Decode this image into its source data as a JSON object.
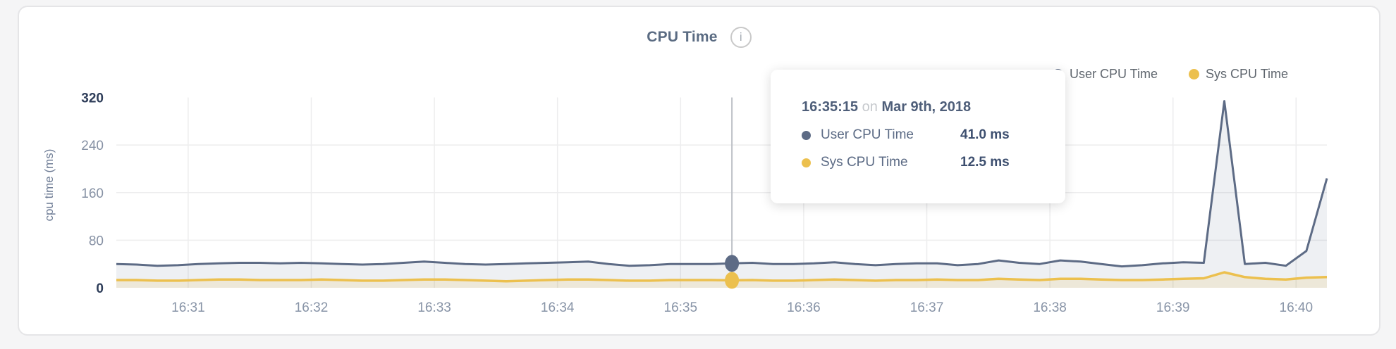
{
  "header": {
    "title": "CPU Time",
    "info_glyph": "i"
  },
  "legend": {
    "items": [
      {
        "label": "User CPU Time",
        "color": "#5d6b85"
      },
      {
        "label": "Sys CPU Time",
        "color": "#ecc04e"
      }
    ]
  },
  "tooltip": {
    "time": "16:35:15",
    "connector": "on",
    "date": "Mar 9th, 2018",
    "rows": [
      {
        "label": "User CPU Time",
        "value": "41.0 ms",
        "color": "#5d6b85"
      },
      {
        "label": "Sys CPU Time",
        "value": "12.5 ms",
        "color": "#ecc04e"
      }
    ]
  },
  "colors": {
    "grid": "#ededee",
    "hover_line": "#bdc1c7",
    "tick_dark": "#2e3d59",
    "tick_light": "#8691a4",
    "x_tick": "#8894a7",
    "user_fill": "rgba(93,107,133,0.10)",
    "sys_fill": "rgba(236,192,78,0.16)"
  },
  "chart_data": {
    "type": "area",
    "title": "CPU Time",
    "xlabel": "",
    "ylabel": "cpu time (ms)",
    "ylim": [
      0,
      320
    ],
    "yticks": [
      0,
      80,
      160,
      240,
      320
    ],
    "xticks": [
      "16:31",
      "16:32",
      "16:33",
      "16:34",
      "16:35",
      "16:36",
      "16:37",
      "16:38",
      "16:39",
      "16:40"
    ],
    "x_start": "16:30:25",
    "x_end": "16:40:15",
    "sample_interval_s": 10,
    "grid": true,
    "legend_position": "top-right",
    "series": [
      {
        "name": "User CPU Time",
        "color": "#5d6b85",
        "values": [
          40,
          39,
          37,
          38,
          40,
          41,
          42,
          42,
          41,
          42,
          41,
          40,
          39,
          40,
          42,
          44,
          42,
          40,
          39,
          40,
          41,
          42,
          43,
          44,
          40,
          37,
          38,
          40,
          40,
          40,
          41,
          42,
          40,
          40,
          41,
          43,
          40,
          38,
          40,
          41,
          41,
          38,
          40,
          46,
          42,
          40,
          46,
          44,
          40,
          36,
          38,
          41,
          43,
          42,
          314,
          40,
          42,
          37,
          62,
          184
        ]
      },
      {
        "name": "Sys CPU Time",
        "color": "#ecc04e",
        "values": [
          13,
          13,
          12,
          12,
          13,
          14,
          14,
          13,
          13,
          13,
          14,
          13,
          12,
          12,
          13,
          14,
          14,
          13,
          12,
          11,
          12,
          13,
          14,
          14,
          13,
          12,
          12,
          13,
          13,
          13,
          12.5,
          13,
          12,
          12,
          13,
          14,
          13,
          12,
          13,
          13,
          14,
          13,
          13,
          15,
          14,
          13,
          15,
          15,
          14,
          13,
          13,
          14,
          15,
          16,
          26,
          18,
          15,
          14,
          17,
          18
        ]
      },
      {
        "name": "hover",
        "note": "cursor position shown with tooltip",
        "values": []
      }
    ],
    "hover": {
      "index": 30,
      "time": "16:35:15",
      "date": "Mar 9th, 2018",
      "values": {
        "User CPU Time": "41.0 ms",
        "Sys CPU Time": "12.5 ms"
      }
    }
  }
}
